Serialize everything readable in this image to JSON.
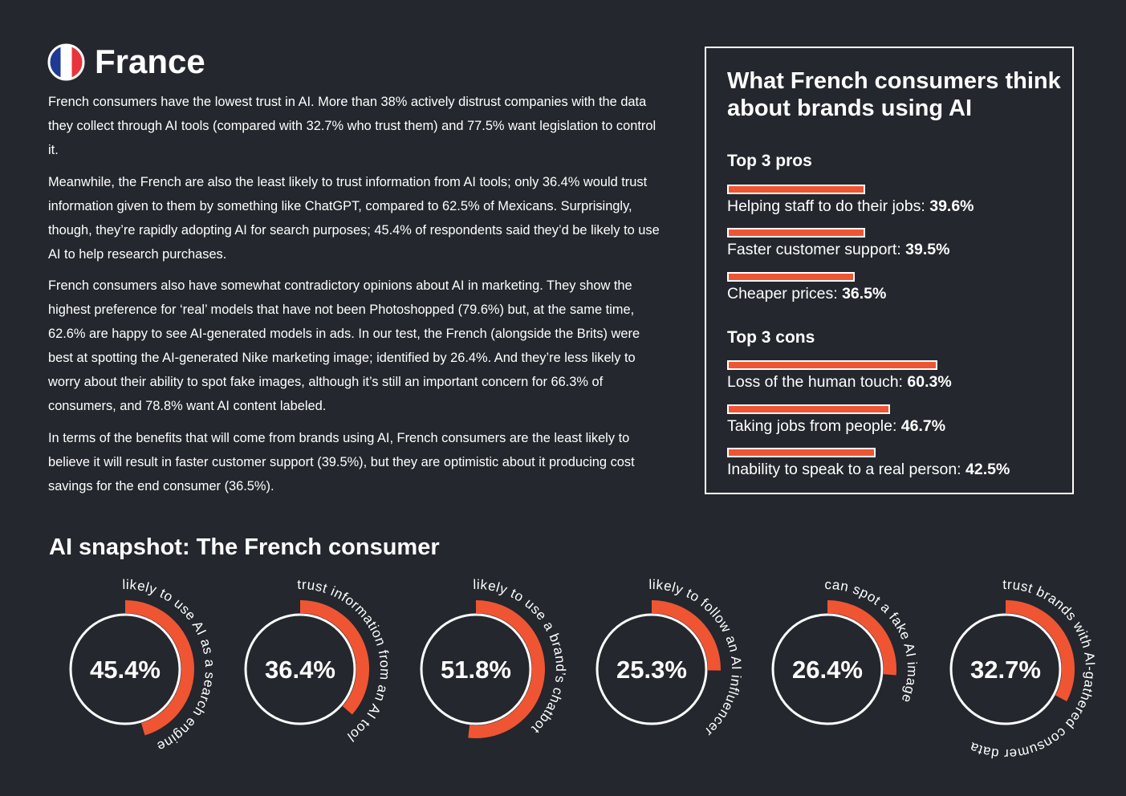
{
  "header": {
    "title": "France",
    "flag_colors": [
      "#1f3a93",
      "#ffffff",
      "#e8343a"
    ]
  },
  "intro": {
    "paragraphs": [
      "French consumers have the lowest trust in AI. More than 38% actively distrust companies with the data they collect through AI tools (compared with 32.7% who trust them) and 77.5% want legislation to control it.",
      "Meanwhile, the French are also the least likely to trust information from AI tools; only 36.4% would trust information given to them by something like ChatGPT, compared to 62.5% of Mexicans. Surprisingly, though, they’re rapidly adopting AI for search purposes; 45.4% of respondents said they’d be likely to use AI to help research purchases.",
      "French consumers also have somewhat contradictory opinions about AI in marketing. They show the highest preference for ‘real’ models that have not been Photoshopped (79.6%) but, at the same time, 62.6% are happy to see AI-generated models in ads. In our test, the French (alongside the Brits) were best at spotting the AI-generated Nike marketing image; identified by 26.4%. And they’re less likely to worry about their ability to spot fake images, although it’s still an important concern for 66.3% of consumers, and 78.8% want AI content labeled.",
      "In terms of the benefits that will come from brands using AI, French consumers are the least likely to believe it will result in faster customer support (39.5%), but they are optimistic about it producing cost savings for the end consumer (36.5%)."
    ]
  },
  "colors": {
    "background": "#24272d",
    "accent": "#ef5533",
    "text": "#ffffff"
  },
  "chart_data": [
    {
      "type": "bar",
      "title": "What French consumers think about brands using AI",
      "groups": [
        {
          "heading": "Top 3 pros",
          "items": [
            {
              "label": "Helping staff to do their jobs:",
              "value": 39.6,
              "display": "39.6%"
            },
            {
              "label": "Faster customer support:",
              "value": 39.5,
              "display": "39.5%"
            },
            {
              "label": "Cheaper prices:",
              "value": 36.5,
              "display": "36.5%"
            }
          ]
        },
        {
          "heading": "Top 3 cons",
          "items": [
            {
              "label": "Loss of the human touch:",
              "value": 60.3,
              "display": "60.3%"
            },
            {
              "label": "Taking jobs from people:",
              "value": 46.7,
              "display": "46.7%"
            },
            {
              "label": "Inability to speak to a real person:",
              "value": 42.5,
              "display": "42.5%"
            }
          ]
        }
      ]
    },
    {
      "type": "pie",
      "title": "AI snapshot: The French consumer",
      "items": [
        {
          "value": 45.4,
          "display": "45.4%",
          "caption": "likely to use AI as a search engine"
        },
        {
          "value": 36.4,
          "display": "36.4%",
          "caption": "trust information from an AI tool"
        },
        {
          "value": 51.8,
          "display": "51.8%",
          "caption": "likely to use a brand’s chatbot"
        },
        {
          "value": 25.3,
          "display": "25.3%",
          "caption": "likely to follow an AI influencer"
        },
        {
          "value": 26.4,
          "display": "26.4%",
          "caption": "can spot a fake AI image"
        },
        {
          "value": 32.7,
          "display": "32.7%",
          "caption": "trust brands with AI-gathered consumer data"
        }
      ]
    }
  ]
}
